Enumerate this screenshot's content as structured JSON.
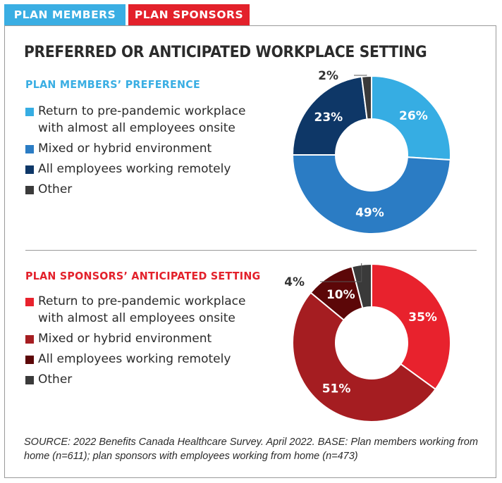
{
  "tabs": [
    {
      "label": "PLAN MEMBERS",
      "color": "#3aaee3"
    },
    {
      "label": "PLAN SPONSORS",
      "color": "#e3212b"
    }
  ],
  "title": "PREFERRED OR ANTICIPATED WORKPLACE SETTING",
  "source": "SOURCE: 2022 Benefits Canada Healthcare Survey. April 2022. BASE: Plan members working from home (n=611); plan sponsors with employees working from home (n=473)",
  "chart_data": [
    {
      "type": "pie",
      "title": "PLAN MEMBERS’ PREFERENCE",
      "title_color": "#3aaee3",
      "categories": [
        "Return to pre-pandemic workplace\nwith almost all employees onsite",
        "Mixed or hybrid environment",
        "All employees working remotely",
        "Other"
      ],
      "values": [
        26,
        49,
        23,
        2
      ],
      "labels": [
        "26%",
        "49%",
        "23%",
        "2%"
      ],
      "colors": [
        "#36ade3",
        "#2b7cc4",
        "#0e3767",
        "#3a3a3a"
      ],
      "legend": "left"
    },
    {
      "type": "pie",
      "title": "PLAN SPONSORS’ ANTICIPATED SETTING",
      "title_color": "#e3212b",
      "categories": [
        "Return to pre-pandemic workplace\nwith almost all employees onsite",
        "Mixed or hybrid environment",
        "All employees working remotely",
        "Other"
      ],
      "values": [
        35,
        51,
        10,
        4
      ],
      "labels": [
        "35%",
        "51%",
        "10%",
        "4%"
      ],
      "colors": [
        "#e8222d",
        "#a51d21",
        "#5c0708",
        "#3a3a3a"
      ],
      "legend": "left"
    }
  ]
}
